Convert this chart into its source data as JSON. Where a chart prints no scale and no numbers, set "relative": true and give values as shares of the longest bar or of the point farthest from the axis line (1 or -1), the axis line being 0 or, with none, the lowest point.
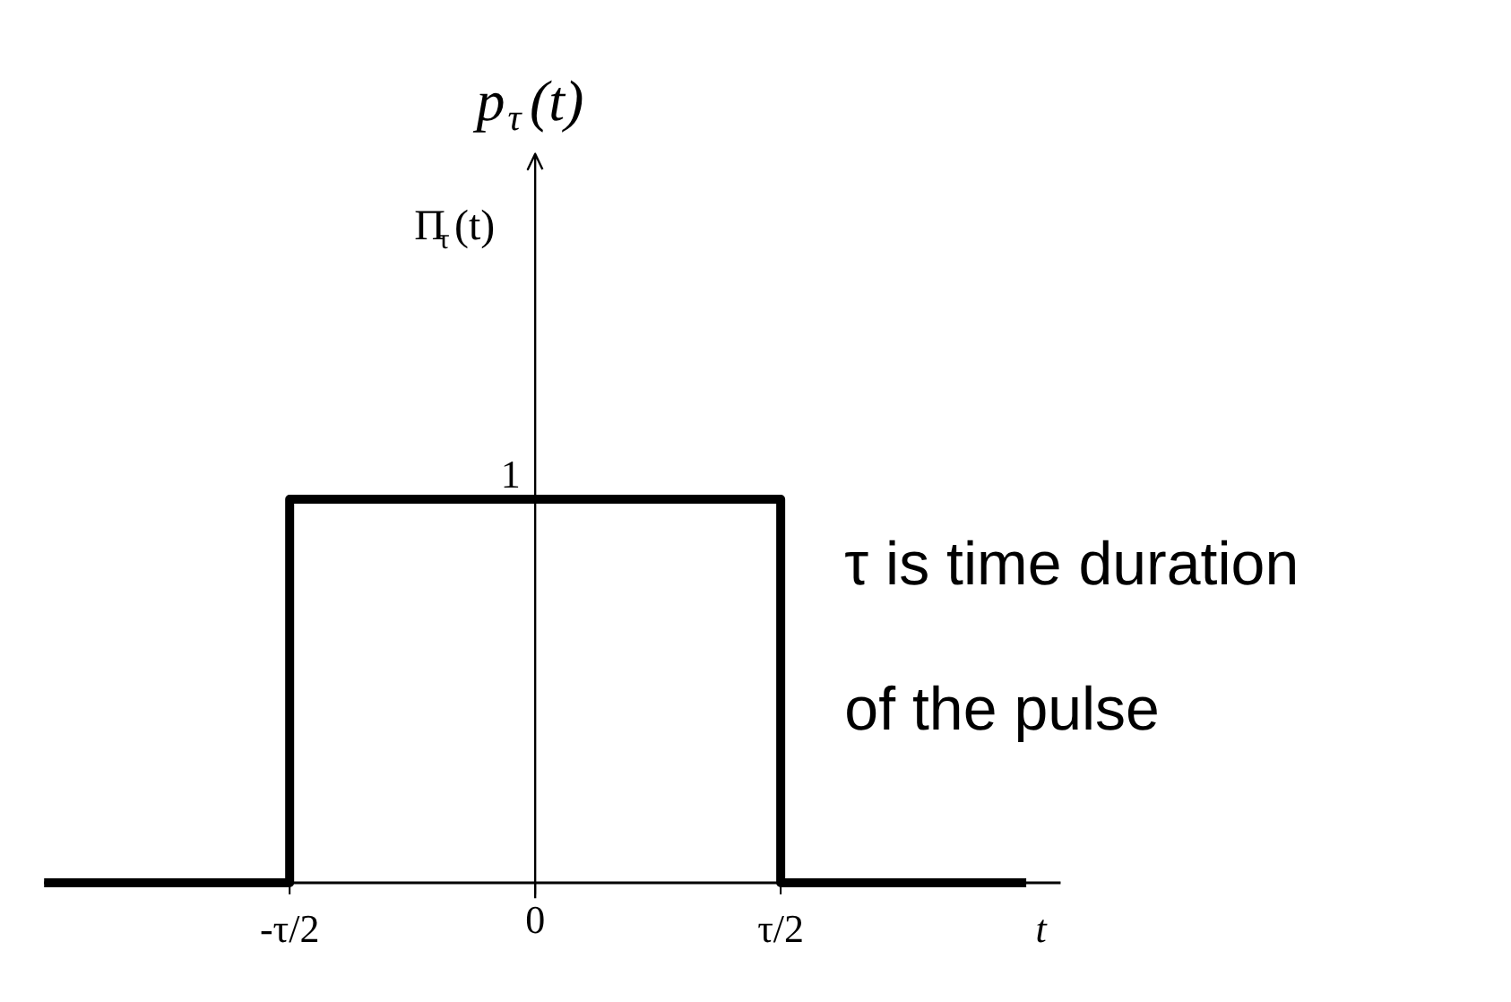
{
  "chart_data": {
    "type": "step",
    "relative": true,
    "title": "p$_{τ}$(t)",
    "xlabel": "t",
    "annotations": [
      {
        "text": "1",
        "y": 1
      },
      "Π$_{τ}$(t)",
      "τ is time duration of the pulse"
    ],
    "categories": [
      null,
      "-τ/2",
      "0",
      "τ/2",
      null
    ],
    "series": [
      {
        "color": "#000000",
        "values": [
          0,
          1,
          1,
          0,
          0
        ]
      }
    ],
    "marker": "none",
    "line_style": "solid"
  }
}
